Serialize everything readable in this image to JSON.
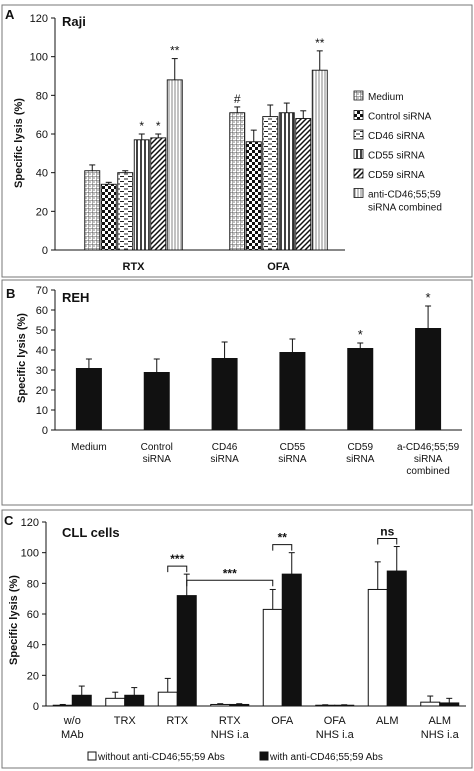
{
  "panels": [
    {
      "letter": "A",
      "label": "Raji",
      "ylabel": "Specific lysis (%)",
      "legend": [
        "Medium",
        "Control siRNA",
        "CD46 siRNA",
        "CD55 siRNA",
        "CD59 siRNA",
        "anti-CD46;55;59 siRNA combined"
      ]
    },
    {
      "letter": "B",
      "label": "REH",
      "ylabel": "Specific lysis (%)"
    },
    {
      "letter": "C",
      "label": "CLL cells",
      "ylabel": "Specific lysis (%)",
      "legend": [
        "without anti-CD46;55;59 Abs",
        "with anti-CD46;55;59 Abs"
      ]
    }
  ],
  "chart_data": [
    {
      "type": "bar",
      "title": "Raji",
      "xlabel": "",
      "ylabel": "Specific lysis (%)",
      "ylim": [
        0,
        120
      ],
      "yticks": [
        0,
        20,
        40,
        60,
        80,
        100,
        120
      ],
      "categories": [
        "RTX",
        "OFA"
      ],
      "series": [
        {
          "name": "Medium",
          "values": [
            41,
            71
          ],
          "errors": [
            3,
            3
          ],
          "pattern": "grid"
        },
        {
          "name": "Control siRNA",
          "values": [
            34,
            56
          ],
          "errors": [
            1,
            6
          ],
          "pattern": "checker"
        },
        {
          "name": "CD46 siRNA",
          "values": [
            40,
            69
          ],
          "errors": [
            1,
            6
          ],
          "pattern": "dash"
        },
        {
          "name": "CD55 siRNA",
          "values": [
            57,
            71
          ],
          "errors": [
            3,
            5
          ],
          "pattern": "vline"
        },
        {
          "name": "CD59 siRNA",
          "values": [
            58,
            68
          ],
          "errors": [
            2,
            4
          ],
          "pattern": "diag"
        },
        {
          "name": "anti-CD46;55;59 siRNA combined",
          "values": [
            88,
            93
          ],
          "errors": [
            11,
            10
          ],
          "pattern": "vline-fine"
        }
      ],
      "annotations": [
        {
          "category": "RTX",
          "series": "CD55 siRNA",
          "text": "*"
        },
        {
          "category": "RTX",
          "series": "CD59 siRNA",
          "text": "*"
        },
        {
          "category": "RTX",
          "series": "anti-CD46;55;59 siRNA combined",
          "text": "**"
        },
        {
          "category": "OFA",
          "series": "Medium",
          "text": "#"
        },
        {
          "category": "OFA",
          "series": "anti-CD46;55;59 siRNA combined",
          "text": "**"
        }
      ],
      "grid": false,
      "legend_position": "right"
    },
    {
      "type": "bar",
      "title": "REH",
      "xlabel": "",
      "ylabel": "Specific lysis (%)",
      "ylim": [
        0,
        70
      ],
      "yticks": [
        0,
        10,
        20,
        30,
        40,
        50,
        60,
        70
      ],
      "categories": [
        [
          "Medium"
        ],
        [
          "Control",
          "siRNA"
        ],
        [
          "CD46",
          "siRNA"
        ],
        [
          "CD55",
          "siRNA"
        ],
        [
          "CD59",
          "siRNA"
        ],
        [
          "a-CD46;55;59",
          "siRNA",
          "combined"
        ]
      ],
      "values": [
        31,
        29,
        36,
        39,
        41,
        51
      ],
      "errors": [
        4.5,
        6.5,
        8,
        6.5,
        2.5,
        11
      ],
      "annotations": [
        {
          "index": 4,
          "text": "*"
        },
        {
          "index": 5,
          "text": "*"
        }
      ],
      "grid": false
    },
    {
      "type": "bar",
      "title": "CLL cells",
      "xlabel": "",
      "ylabel": "Specific lysis (%)",
      "ylim": [
        0,
        120
      ],
      "yticks": [
        0,
        20,
        40,
        60,
        80,
        100,
        120
      ],
      "categories": [
        [
          "w/o",
          "MAb"
        ],
        [
          "TRX"
        ],
        [
          "RTX"
        ],
        [
          "RTX",
          "NHS i.a"
        ],
        [
          "OFA"
        ],
        [
          "OFA",
          "NHS i.a"
        ],
        [
          "ALM"
        ],
        [
          "ALM",
          "NHS i.a"
        ]
      ],
      "series": [
        {
          "name": "without anti-CD46;55;59 Abs",
          "values": [
            0.5,
            5,
            9,
            1,
            63,
            0.5,
            76,
            2.5
          ],
          "errors": [
            0.5,
            4,
            9,
            0.5,
            13,
            0.3,
            18,
            4
          ],
          "color": "#ffffff"
        },
        {
          "name": "with anti-CD46;55;59 Abs",
          "values": [
            7,
            7,
            72,
            1,
            86,
            0.5,
            88,
            2
          ],
          "errors": [
            6,
            5,
            14,
            0.5,
            14,
            0.3,
            16,
            3
          ],
          "color": "#111111"
        }
      ],
      "brackets": [
        {
          "from": [
            2,
            0
          ],
          "to": [
            2,
            1
          ],
          "text": "***"
        },
        {
          "from": [
            2,
            1
          ],
          "to": [
            4,
            0
          ],
          "text": "***"
        },
        {
          "from": [
            4,
            0
          ],
          "to": [
            4,
            1
          ],
          "text": "**"
        },
        {
          "from": [
            6,
            0
          ],
          "to": [
            6,
            1
          ],
          "text": "ns"
        }
      ],
      "grid": false,
      "legend_position": "bottom"
    }
  ]
}
